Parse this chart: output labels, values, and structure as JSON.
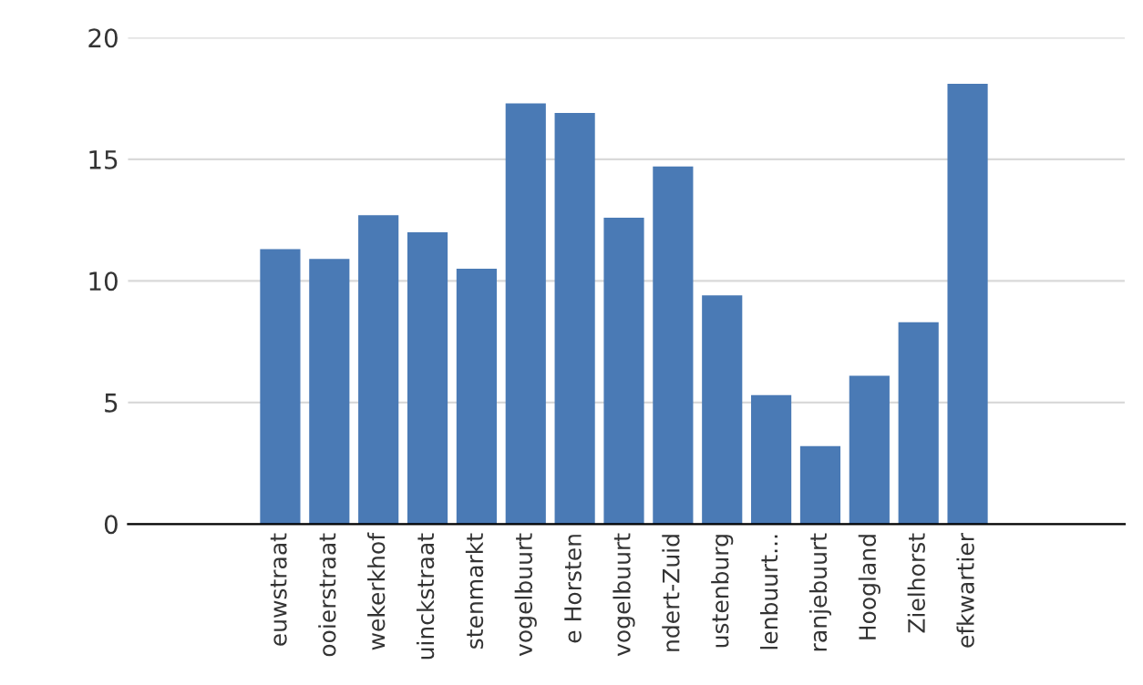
{
  "chart_data": {
    "type": "bar",
    "categories": [
      "euwstraat",
      "ooierstraat",
      "wekerkhof",
      "uinckstraat",
      "stenmarkt",
      "vogelbuurt",
      "e Horsten",
      "vogelbuurt",
      "ndert-Zuid",
      "ustenburg",
      "lenbuurt...",
      "ranjebuurt",
      "Hoogland",
      "Zielhorst",
      "efkwartier"
    ],
    "values": [
      11.3,
      10.9,
      12.7,
      12.0,
      10.5,
      17.3,
      16.9,
      12.6,
      14.7,
      9.4,
      5.3,
      3.2,
      6.1,
      8.3,
      18.1
    ],
    "color": "#4a7ab5",
    "ylim": [
      0,
      20
    ],
    "yticks": [
      0,
      5,
      10,
      15,
      20
    ],
    "grid": "y"
  }
}
